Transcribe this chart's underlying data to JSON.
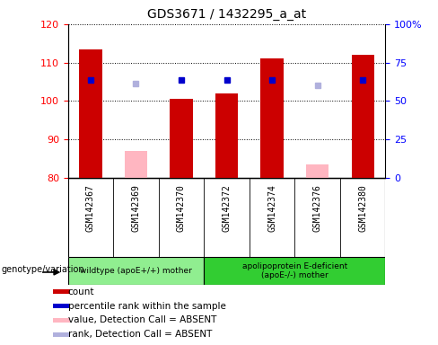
{
  "title": "GDS3671 / 1432295_a_at",
  "samples": [
    "GSM142367",
    "GSM142369",
    "GSM142370",
    "GSM142372",
    "GSM142374",
    "GSM142376",
    "GSM142380"
  ],
  "count_values": [
    113.5,
    87.0,
    100.5,
    102.0,
    111.0,
    83.5,
    112.0
  ],
  "count_absent": [
    false,
    true,
    false,
    false,
    false,
    true,
    false
  ],
  "percentile_values": [
    105.5,
    104.5,
    105.5,
    105.5,
    105.5,
    104.0,
    105.5
  ],
  "percentile_absent": [
    false,
    true,
    false,
    false,
    false,
    true,
    false
  ],
  "ymin": 80,
  "ymax": 120,
  "y2min": 0,
  "y2max": 100,
  "yticks": [
    80,
    90,
    100,
    110,
    120
  ],
  "y2ticks": [
    0,
    25,
    50,
    75,
    100
  ],
  "y2labels": [
    "0",
    "25",
    "50",
    "75",
    "100%"
  ],
  "n_group1": 3,
  "n_group2": 4,
  "group1_label": "wildtype (apoE+/+) mother",
  "group2_label": "apolipoprotein E-deficient\n(apoE-/-) mother",
  "genotype_label": "genotype/variation",
  "bar_color_present": "#cc0000",
  "bar_color_absent": "#ffb6c1",
  "square_color_present": "#0000cc",
  "square_color_absent": "#b0b0dd",
  "bar_width": 0.5,
  "group1_color": "#90ee90",
  "group2_color": "#32cd32",
  "axis_bg": "#d3d3d3",
  "legend_items": [
    {
      "color": "#cc0000",
      "label": "count"
    },
    {
      "color": "#0000cc",
      "label": "percentile rank within the sample"
    },
    {
      "color": "#ffb6c1",
      "label": "value, Detection Call = ABSENT"
    },
    {
      "color": "#b0b0dd",
      "label": "rank, Detection Call = ABSENT"
    }
  ]
}
